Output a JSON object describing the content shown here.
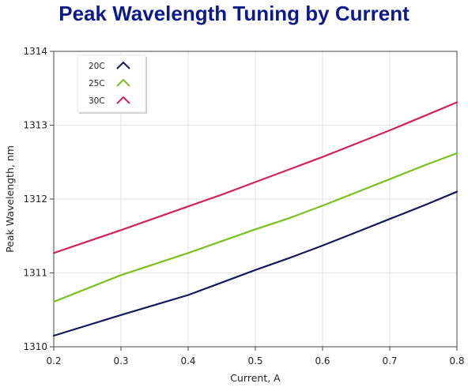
{
  "chart_data": {
    "type": "line",
    "title": "Peak Wavelength Tuning by Current",
    "xlabel": "Current, A",
    "ylabel": "Peak Wavelength, nm",
    "xlim": [
      0.2,
      0.8
    ],
    "ylim": [
      1310,
      1314
    ],
    "xticks": [
      0.2,
      0.3,
      0.4,
      0.5,
      0.6,
      0.7,
      0.8
    ],
    "yticks": [
      1310,
      1311,
      1312,
      1313,
      1314
    ],
    "xtick_labels": [
      "0.2",
      "0.3",
      "0.4",
      "0.5",
      "0.6",
      "0.7",
      "0.8"
    ],
    "ytick_labels": [
      "1310",
      "1311",
      "1312",
      "1313",
      "1314"
    ],
    "grid": true,
    "legend_position": "top-left",
    "series": [
      {
        "name": "20C",
        "color": "#141a5a",
        "x": [
          0.2,
          0.3,
          0.4,
          0.45,
          0.5,
          0.55,
          0.6,
          0.65,
          0.7,
          0.75,
          0.8
        ],
        "y": [
          1310.15,
          1310.43,
          1310.7,
          1310.87,
          1311.04,
          1311.2,
          1311.37,
          1311.55,
          1311.73,
          1311.91,
          1312.1
        ]
      },
      {
        "name": "25C",
        "color": "#7ac01e",
        "x": [
          0.2,
          0.3,
          0.4,
          0.45,
          0.5,
          0.55,
          0.6,
          0.65,
          0.7,
          0.75,
          0.8
        ],
        "y": [
          1310.61,
          1310.97,
          1311.27,
          1311.43,
          1311.59,
          1311.74,
          1311.91,
          1312.09,
          1312.27,
          1312.45,
          1312.62
        ]
      },
      {
        "name": "30C",
        "color": "#d0235c",
        "x": [
          0.2,
          0.3,
          0.4,
          0.45,
          0.5,
          0.55,
          0.6,
          0.65,
          0.7,
          0.75,
          0.8
        ],
        "y": [
          1311.27,
          1311.58,
          1311.9,
          1312.06,
          1312.23,
          1312.4,
          1312.57,
          1312.75,
          1312.93,
          1313.12,
          1313.31
        ]
      }
    ]
  }
}
